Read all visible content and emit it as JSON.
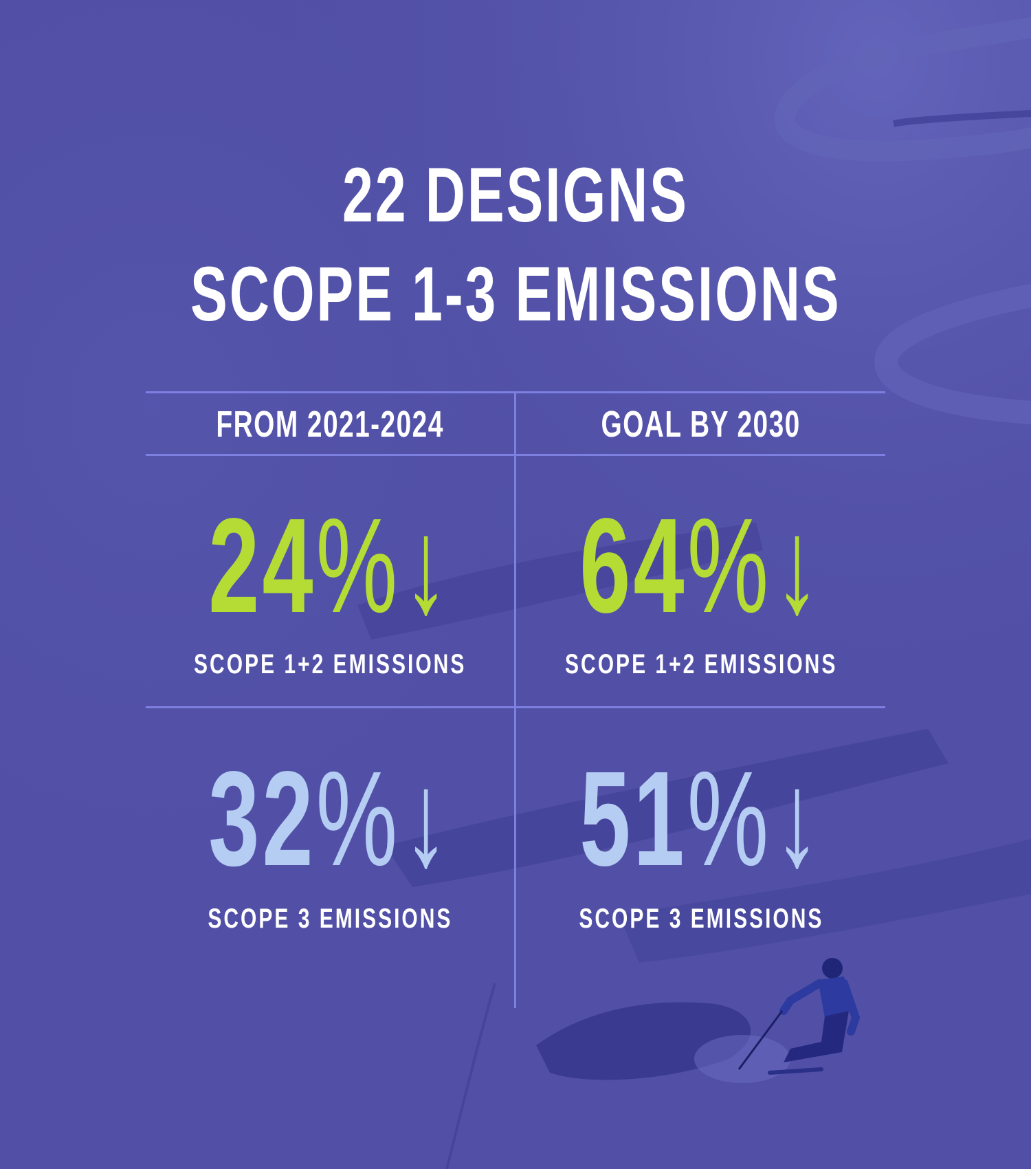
{
  "title": {
    "line1": "22 DESIGNS",
    "line2": "SCOPE 1-3 EMISSIONS"
  },
  "columns": [
    {
      "header": "FROM 2021-2024"
    },
    {
      "header": "GOAL BY 2030"
    }
  ],
  "stats": {
    "top_left": {
      "number": "24",
      "percent": "%",
      "arrow": "↓",
      "label": "SCOPE 1+2 EMISSIONS"
    },
    "top_right": {
      "number": "64",
      "percent": "%",
      "arrow": "↓",
      "label": "SCOPE 1+2 EMISSIONS"
    },
    "bottom_left": {
      "number": "32",
      "percent": "%",
      "arrow": "↓",
      "label": "SCOPE 3 EMISSIONS"
    },
    "bottom_right": {
      "number": "51",
      "percent": "%",
      "arrow": "↓",
      "label": "SCOPE 3 EMISSIONS"
    }
  },
  "colors": {
    "background": "#5150a6",
    "scope12_accent": "#b5dc34",
    "scope3_accent": "#b6cdf3",
    "divider": "#7d80e0",
    "text": "#ffffff"
  }
}
